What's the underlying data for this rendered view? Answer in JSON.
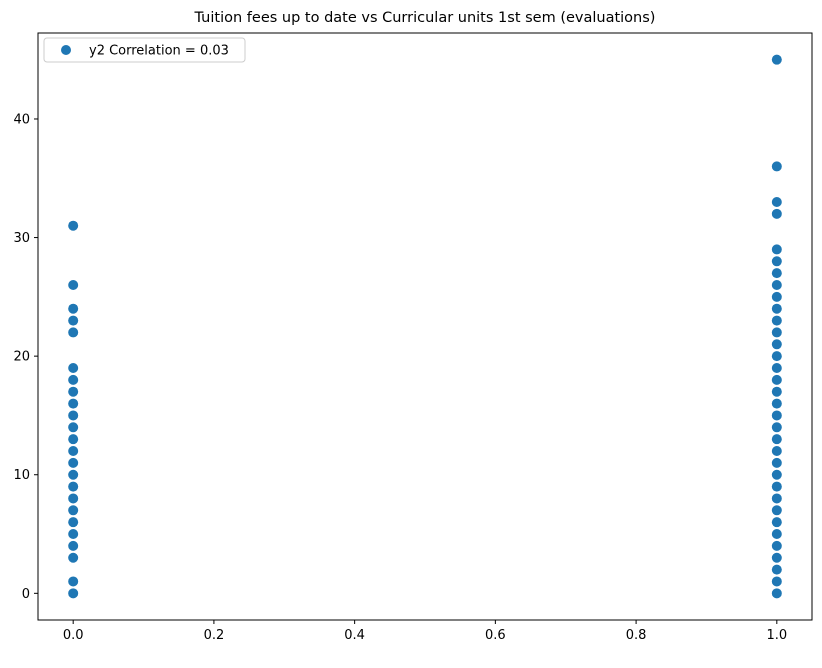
{
  "chart_data": {
    "type": "scatter",
    "title": "Tuition fees up to date vs Curricular units 1st sem (evaluations)",
    "xlabel": "",
    "ylabel": "",
    "xlim": [
      -0.05,
      1.05
    ],
    "ylim": [
      -2.25,
      47.25
    ],
    "xticks": [
      0.0,
      0.2,
      0.4,
      0.6,
      0.8,
      1.0
    ],
    "xtick_labels": [
      "0.0",
      "0.2",
      "0.4",
      "0.6",
      "0.8",
      "1.0"
    ],
    "yticks": [
      0,
      10,
      20,
      30,
      40
    ],
    "ytick_labels": [
      "0",
      "10",
      "20",
      "30",
      "40"
    ],
    "grid": false,
    "legend": {
      "position": "top-left",
      "entries": [
        "y2 Correlation = 0.03"
      ]
    },
    "series": [
      {
        "name": "y2 Correlation = 0.03",
        "color": "#1f77b4",
        "points": [
          {
            "x": 0,
            "y": 0
          },
          {
            "x": 0,
            "y": 1
          },
          {
            "x": 0,
            "y": 3
          },
          {
            "x": 0,
            "y": 4
          },
          {
            "x": 0,
            "y": 5
          },
          {
            "x": 0,
            "y": 6
          },
          {
            "x": 0,
            "y": 7
          },
          {
            "x": 0,
            "y": 8
          },
          {
            "x": 0,
            "y": 9
          },
          {
            "x": 0,
            "y": 10
          },
          {
            "x": 0,
            "y": 11
          },
          {
            "x": 0,
            "y": 12
          },
          {
            "x": 0,
            "y": 13
          },
          {
            "x": 0,
            "y": 14
          },
          {
            "x": 0,
            "y": 15
          },
          {
            "x": 0,
            "y": 16
          },
          {
            "x": 0,
            "y": 17
          },
          {
            "x": 0,
            "y": 18
          },
          {
            "x": 0,
            "y": 19
          },
          {
            "x": 0,
            "y": 22
          },
          {
            "x": 0,
            "y": 23
          },
          {
            "x": 0,
            "y": 24
          },
          {
            "x": 0,
            "y": 26
          },
          {
            "x": 0,
            "y": 31
          },
          {
            "x": 1,
            "y": 0
          },
          {
            "x": 1,
            "y": 1
          },
          {
            "x": 1,
            "y": 2
          },
          {
            "x": 1,
            "y": 3
          },
          {
            "x": 1,
            "y": 4
          },
          {
            "x": 1,
            "y": 5
          },
          {
            "x": 1,
            "y": 6
          },
          {
            "x": 1,
            "y": 7
          },
          {
            "x": 1,
            "y": 8
          },
          {
            "x": 1,
            "y": 9
          },
          {
            "x": 1,
            "y": 10
          },
          {
            "x": 1,
            "y": 11
          },
          {
            "x": 1,
            "y": 12
          },
          {
            "x": 1,
            "y": 13
          },
          {
            "x": 1,
            "y": 14
          },
          {
            "x": 1,
            "y": 15
          },
          {
            "x": 1,
            "y": 16
          },
          {
            "x": 1,
            "y": 17
          },
          {
            "x": 1,
            "y": 18
          },
          {
            "x": 1,
            "y": 19
          },
          {
            "x": 1,
            "y": 20
          },
          {
            "x": 1,
            "y": 21
          },
          {
            "x": 1,
            "y": 22
          },
          {
            "x": 1,
            "y": 23
          },
          {
            "x": 1,
            "y": 24
          },
          {
            "x": 1,
            "y": 25
          },
          {
            "x": 1,
            "y": 26
          },
          {
            "x": 1,
            "y": 27
          },
          {
            "x": 1,
            "y": 28
          },
          {
            "x": 1,
            "y": 29
          },
          {
            "x": 1,
            "y": 32
          },
          {
            "x": 1,
            "y": 33
          },
          {
            "x": 1,
            "y": 36
          },
          {
            "x": 1,
            "y": 45
          }
        ]
      }
    ]
  }
}
